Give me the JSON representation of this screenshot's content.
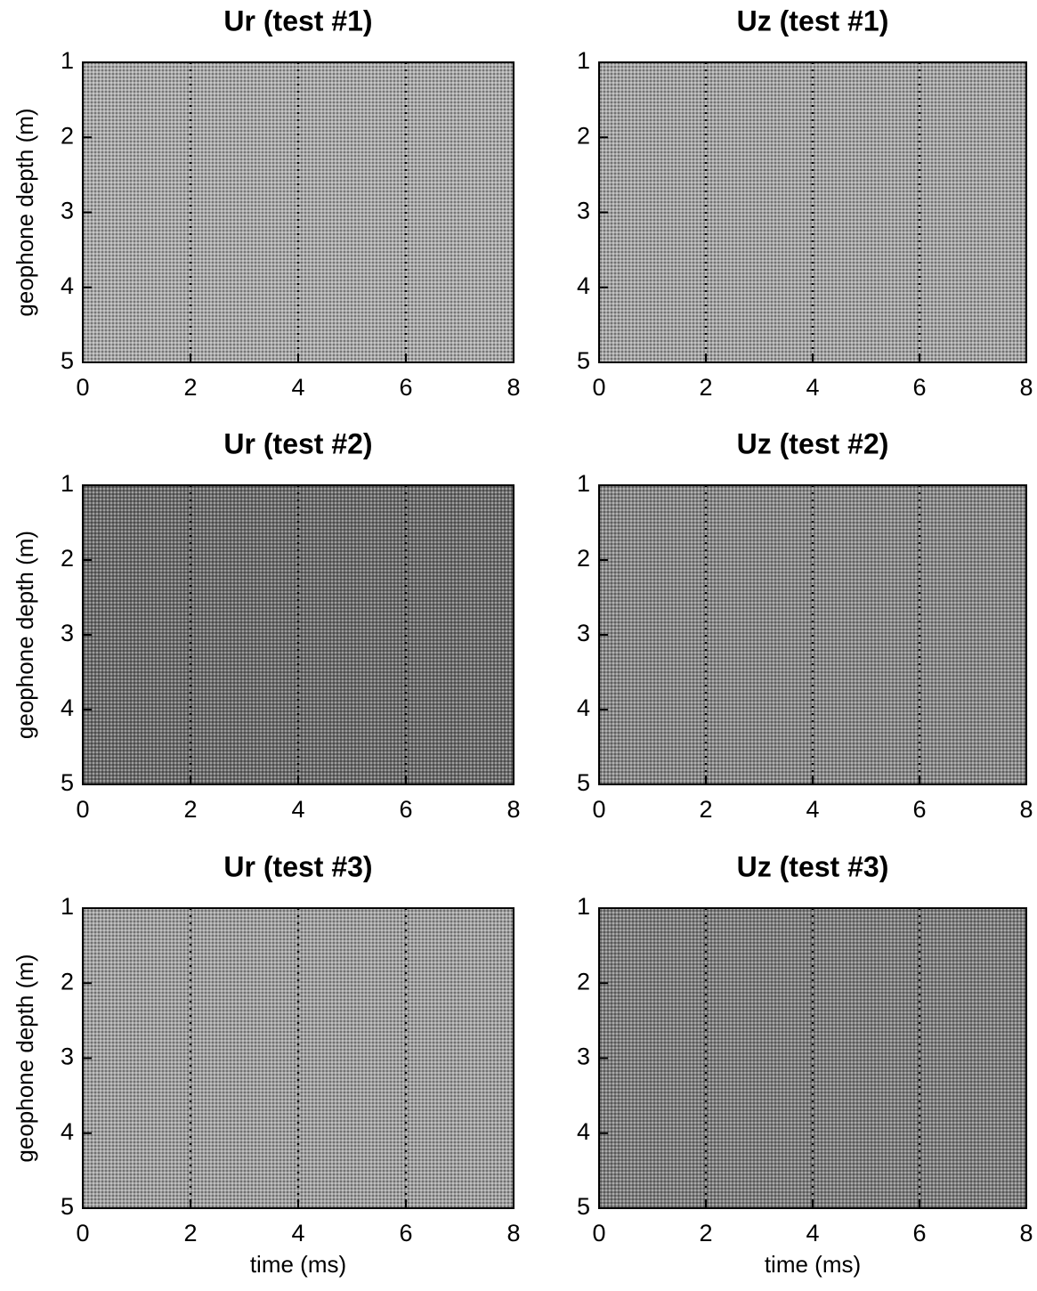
{
  "chart_data": [
    {
      "type": "image",
      "title": "Ur (test #1)",
      "ylabel": "geophone depth (m)",
      "xlim": [
        0,
        8
      ],
      "ylim": [
        5,
        1
      ],
      "xticks": [
        0,
        2,
        4,
        6,
        8
      ],
      "yticks": [
        1,
        2,
        3,
        4,
        5
      ],
      "grid": true,
      "color": "#a9a9a9"
    },
    {
      "type": "image",
      "title": "Uz (test #1)",
      "xlim": [
        0,
        8
      ],
      "ylim": [
        5,
        1
      ],
      "xticks": [
        0,
        2,
        4,
        6,
        8
      ],
      "yticks": [
        1,
        2,
        3,
        4,
        5
      ],
      "grid": true,
      "color": "#a4a4a4"
    },
    {
      "type": "image",
      "title": "Ur (test #2)",
      "ylabel": "geophone depth (m)",
      "xlim": [
        0,
        8
      ],
      "ylim": [
        5,
        1
      ],
      "xticks": [
        0,
        2,
        4,
        6,
        8
      ],
      "yticks": [
        1,
        2,
        3,
        4,
        5
      ],
      "grid": true,
      "color": "#6c6c6c"
    },
    {
      "type": "image",
      "title": "Uz (test #2)",
      "xlim": [
        0,
        8
      ],
      "ylim": [
        5,
        1
      ],
      "xticks": [
        0,
        2,
        4,
        6,
        8
      ],
      "yticks": [
        1,
        2,
        3,
        4,
        5
      ],
      "grid": true,
      "color": "#888888"
    },
    {
      "type": "image",
      "title": "Ur (test #3)",
      "ylabel": "geophone depth (m)",
      "xlabel": "time (ms)",
      "xlim": [
        0,
        8
      ],
      "ylim": [
        5,
        1
      ],
      "xticks": [
        0,
        2,
        4,
        6,
        8
      ],
      "yticks": [
        1,
        2,
        3,
        4,
        5
      ],
      "grid": true,
      "color": "#a0a0a0"
    },
    {
      "type": "image",
      "title": "Uz (test #3)",
      "xlabel": "time (ms)",
      "xlim": [
        0,
        8
      ],
      "ylim": [
        5,
        1
      ],
      "xticks": [
        0,
        2,
        4,
        6,
        8
      ],
      "yticks": [
        1,
        2,
        3,
        4,
        5
      ],
      "grid": true,
      "color": "#7e7e7e"
    }
  ]
}
